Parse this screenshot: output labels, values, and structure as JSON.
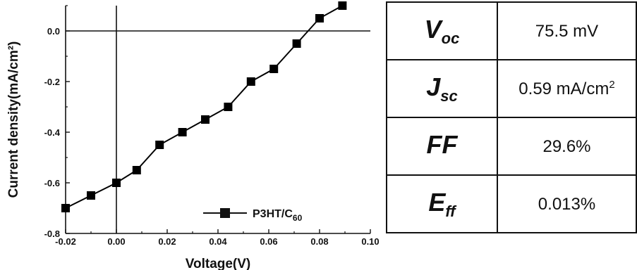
{
  "chart_data": {
    "type": "line",
    "xlabel": "Voltage(V)",
    "ylabel": "Current density(mA/cm²)",
    "xlim": [
      -0.02,
      0.1
    ],
    "ylim": [
      -0.8,
      0.1
    ],
    "x_ticks": [
      "-0.02",
      "0.00",
      "0.02",
      "0.04",
      "0.06",
      "0.08",
      "0.10"
    ],
    "y_ticks": [
      "0.0",
      "-0.2",
      "-0.4",
      "-0.6",
      "-0.8"
    ],
    "legend_position": "bottom-right",
    "grid": false,
    "series": [
      {
        "name": "P3HT/C60",
        "marker": "square",
        "color": "#000000",
        "x": [
          -0.02,
          -0.01,
          0.0,
          0.008,
          0.017,
          0.026,
          0.035,
          0.044,
          0.053,
          0.062,
          0.071,
          0.08,
          0.089
        ],
        "y": [
          -0.7,
          -0.65,
          -0.6,
          -0.55,
          -0.45,
          -0.4,
          -0.35,
          -0.3,
          -0.2,
          -0.15,
          -0.05,
          0.05,
          0.1
        ]
      }
    ]
  },
  "table": {
    "rows": [
      {
        "symbol": "V",
        "subscript": "oc",
        "value": "75.5 mV",
        "value_sup": ""
      },
      {
        "symbol": "J",
        "subscript": "sc",
        "value": "0.59 mA/cm",
        "value_sup": "2"
      },
      {
        "symbol": "FF",
        "subscript": "",
        "value": "29.6%",
        "value_sup": ""
      },
      {
        "symbol": "E",
        "subscript": "ff",
        "value": "0.013%",
        "value_sup": ""
      }
    ]
  }
}
